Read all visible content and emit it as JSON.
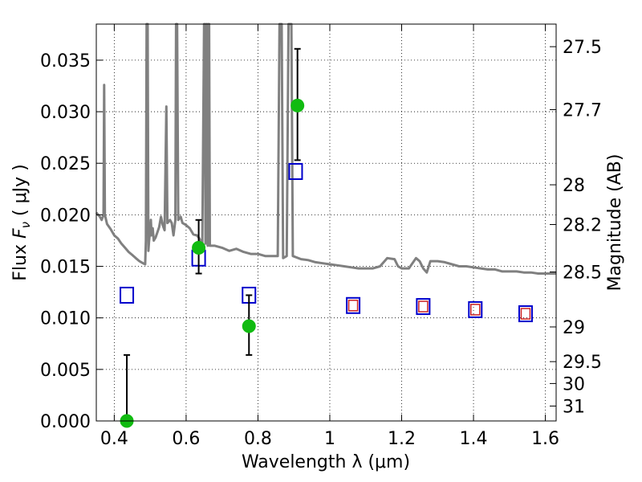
{
  "chart_data": {
    "type": "scatter",
    "xlabel": "Wavelength  λ (μm)",
    "ylabel": "Flux  F_ν  ( μJy )",
    "ylabel_parts": [
      "Flux  ",
      "F",
      "ν",
      "  ( μJy )"
    ],
    "y2label": "Magnitude (AB)",
    "xlim": [
      0.35,
      1.63
    ],
    "ylim": [
      0.0,
      0.0385
    ],
    "grid": true,
    "x_ticks": [
      {
        "value": 0.4,
        "label": "0.4"
      },
      {
        "value": 0.6,
        "label": "0.6"
      },
      {
        "value": 0.8,
        "label": "0.8"
      },
      {
        "value": 1.0,
        "label": "1"
      },
      {
        "value": 1.2,
        "label": "1.2"
      },
      {
        "value": 1.4,
        "label": "1.4"
      },
      {
        "value": 1.6,
        "label": "1.6"
      }
    ],
    "y_ticks": [
      {
        "value": 0.0,
        "label": "0.000"
      },
      {
        "value": 0.005,
        "label": "0.005"
      },
      {
        "value": 0.01,
        "label": "0.010"
      },
      {
        "value": 0.015,
        "label": "0.015"
      },
      {
        "value": 0.02,
        "label": "0.020"
      },
      {
        "value": 0.025,
        "label": "0.025"
      },
      {
        "value": 0.03,
        "label": "0.030"
      },
      {
        "value": 0.035,
        "label": "0.035"
      }
    ],
    "y2_ticks": [
      {
        "value": 27.5,
        "label": "27.5"
      },
      {
        "value": 27.7,
        "label": "27.7"
      },
      {
        "value": 28.0,
        "label": "28"
      },
      {
        "value": 28.2,
        "label": "28.2"
      },
      {
        "value": 28.5,
        "label": "28.5"
      },
      {
        "value": 29.0,
        "label": "29"
      },
      {
        "value": 29.5,
        "label": "29.5"
      },
      {
        "value": 30.0,
        "label": "30"
      },
      {
        "value": 31.0,
        "label": "31"
      }
    ],
    "series": [
      {
        "name": "model-spectrum",
        "kind": "line",
        "color": "#808080",
        "points": [
          [
            0.35,
            0.0202
          ],
          [
            0.36,
            0.0198
          ],
          [
            0.365,
            0.0195
          ],
          [
            0.37,
            0.02
          ],
          [
            0.372,
            0.0326
          ],
          [
            0.374,
            0.02
          ],
          [
            0.38,
            0.0191
          ],
          [
            0.39,
            0.0186
          ],
          [
            0.4,
            0.018
          ],
          [
            0.41,
            0.0177
          ],
          [
            0.42,
            0.0172
          ],
          [
            0.43,
            0.0168
          ],
          [
            0.44,
            0.0164
          ],
          [
            0.45,
            0.0161
          ],
          [
            0.46,
            0.0158
          ],
          [
            0.47,
            0.0155
          ],
          [
            0.48,
            0.0153
          ],
          [
            0.486,
            0.0152
          ],
          [
            0.488,
            0.0175
          ],
          [
            0.49,
            0.0385
          ],
          [
            0.493,
            0.0385
          ],
          [
            0.495,
            0.0165
          ],
          [
            0.497,
            0.0175
          ],
          [
            0.5,
            0.0185
          ],
          [
            0.502,
            0.0195
          ],
          [
            0.504,
            0.018
          ],
          [
            0.507,
            0.0187
          ],
          [
            0.51,
            0.0175
          ],
          [
            0.515,
            0.0178
          ],
          [
            0.52,
            0.0183
          ],
          [
            0.525,
            0.0188
          ],
          [
            0.53,
            0.0198
          ],
          [
            0.535,
            0.019
          ],
          [
            0.54,
            0.0185
          ],
          [
            0.545,
            0.0305
          ],
          [
            0.548,
            0.0192
          ],
          [
            0.555,
            0.0195
          ],
          [
            0.56,
            0.0192
          ],
          [
            0.565,
            0.018
          ],
          [
            0.57,
            0.0195
          ],
          [
            0.572,
            0.0385
          ],
          [
            0.575,
            0.0385
          ],
          [
            0.578,
            0.0195
          ],
          [
            0.585,
            0.0198
          ],
          [
            0.59,
            0.0192
          ],
          [
            0.6,
            0.019
          ],
          [
            0.61,
            0.0187
          ],
          [
            0.62,
            0.0181
          ],
          [
            0.63,
            0.018
          ],
          [
            0.635,
            0.0178
          ],
          [
            0.64,
            0.0175
          ],
          [
            0.645,
            0.0172
          ],
          [
            0.65,
            0.0385
          ],
          [
            0.652,
            0.0385
          ],
          [
            0.654,
            0.0172
          ],
          [
            0.656,
            0.0385
          ],
          [
            0.658,
            0.0385
          ],
          [
            0.66,
            0.017
          ],
          [
            0.662,
            0.0385
          ],
          [
            0.664,
            0.0385
          ],
          [
            0.666,
            0.017
          ],
          [
            0.68,
            0.017
          ],
          [
            0.7,
            0.0168
          ],
          [
            0.72,
            0.0165
          ],
          [
            0.74,
            0.0167
          ],
          [
            0.76,
            0.0164
          ],
          [
            0.78,
            0.0162
          ],
          [
            0.8,
            0.0162
          ],
          [
            0.82,
            0.016
          ],
          [
            0.84,
            0.016
          ],
          [
            0.855,
            0.016
          ],
          [
            0.86,
            0.0385
          ],
          [
            0.866,
            0.0385
          ],
          [
            0.87,
            0.0158
          ],
          [
            0.88,
            0.016
          ],
          [
            0.885,
            0.0385
          ],
          [
            0.89,
            0.0385
          ],
          [
            0.893,
            0.0385
          ],
          [
            0.897,
            0.016
          ],
          [
            0.92,
            0.0157
          ],
          [
            0.94,
            0.0156
          ],
          [
            0.96,
            0.0154
          ],
          [
            0.98,
            0.0153
          ],
          [
            1.0,
            0.0152
          ],
          [
            1.02,
            0.0151
          ],
          [
            1.04,
            0.015
          ],
          [
            1.06,
            0.0149
          ],
          [
            1.08,
            0.0148
          ],
          [
            1.1,
            0.0148
          ],
          [
            1.12,
            0.0148
          ],
          [
            1.14,
            0.015
          ],
          [
            1.16,
            0.0158
          ],
          [
            1.18,
            0.0157
          ],
          [
            1.19,
            0.015
          ],
          [
            1.2,
            0.0148
          ],
          [
            1.22,
            0.0148
          ],
          [
            1.24,
            0.0158
          ],
          [
            1.25,
            0.0155
          ],
          [
            1.26,
            0.0148
          ],
          [
            1.27,
            0.0144
          ],
          [
            1.28,
            0.0155
          ],
          [
            1.3,
            0.0155
          ],
          [
            1.32,
            0.0154
          ],
          [
            1.34,
            0.0152
          ],
          [
            1.36,
            0.015
          ],
          [
            1.38,
            0.015
          ],
          [
            1.4,
            0.0149
          ],
          [
            1.42,
            0.0148
          ],
          [
            1.44,
            0.0147
          ],
          [
            1.46,
            0.0147
          ],
          [
            1.48,
            0.0145
          ],
          [
            1.5,
            0.0145
          ],
          [
            1.52,
            0.0145
          ],
          [
            1.54,
            0.0144
          ],
          [
            1.56,
            0.0144
          ],
          [
            1.58,
            0.0143
          ],
          [
            1.6,
            0.0143
          ],
          [
            1.62,
            0.0143
          ],
          [
            1.63,
            0.0143
          ]
        ]
      },
      {
        "name": "model-photometry",
        "kind": "square",
        "color": "#0000cc",
        "points": [
          [
            0.435,
            0.0122
          ],
          [
            0.635,
            0.0158
          ],
          [
            0.775,
            0.0122
          ],
          [
            0.905,
            0.0242
          ],
          [
            1.065,
            0.0112
          ],
          [
            1.26,
            0.0111
          ],
          [
            1.405,
            0.0108
          ],
          [
            1.545,
            0.0104
          ]
        ]
      },
      {
        "name": "model-photometry-nir",
        "kind": "square-small",
        "color": "#cc2222",
        "points": [
          [
            1.065,
            0.0112
          ],
          [
            1.26,
            0.0111
          ],
          [
            1.405,
            0.0108
          ],
          [
            1.545,
            0.0104
          ]
        ]
      },
      {
        "name": "observed-photometry",
        "kind": "errorbar",
        "color": "#11bb11",
        "points": [
          {
            "x": 0.435,
            "y": 0.0,
            "err_low": 0.0,
            "err_high": 0.0064
          },
          {
            "x": 0.635,
            "y": 0.0168,
            "err_low": 0.0143,
            "err_high": 0.0195
          },
          {
            "x": 0.775,
            "y": 0.0092,
            "err_low": 0.0064,
            "err_high": 0.0122
          },
          {
            "x": 0.91,
            "y": 0.0306,
            "err_low": 0.0253,
            "err_high": 0.0361
          }
        ]
      }
    ]
  }
}
